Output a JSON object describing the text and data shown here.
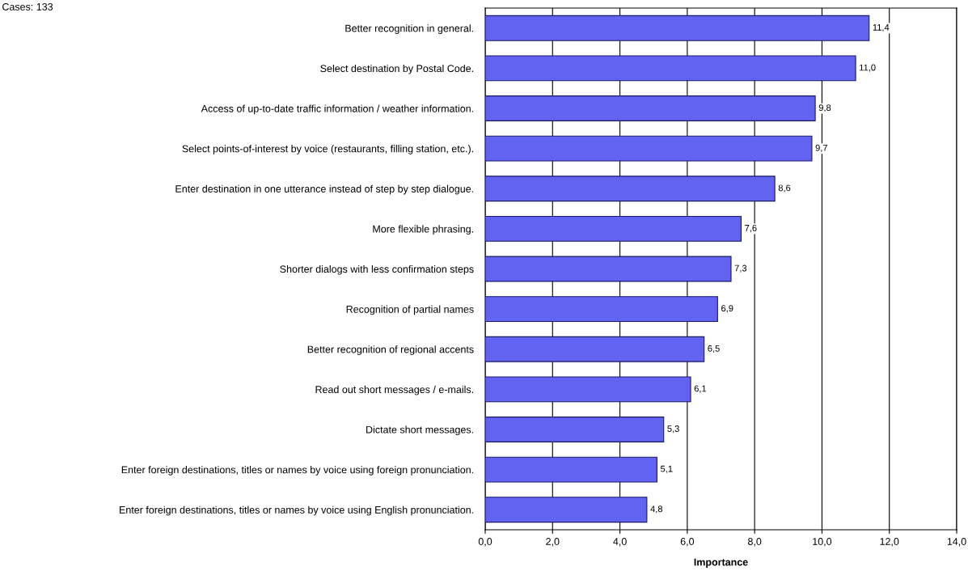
{
  "chart_data": {
    "type": "bar",
    "orientation": "horizontal",
    "xlabel": "Importance",
    "annotations": [
      "Cases: 133"
    ],
    "categories": [
      "Better recognition in general.",
      "Select destination by Postal Code.",
      "Access of up-to-date traffic information / weather information.",
      "Select points-of-interest by voice (restaurants, filling station, etc.).",
      "Enter destination in one utterance instead of step by step dialogue.",
      "More flexible phrasing.",
      "Shorter dialogs with less confirmation steps",
      "Recognition of partial names",
      "Better recognition of regional accents",
      "Read out short messages / e-mails.",
      "Dictate short messages.",
      "Enter foreign destinations, titles or names by voice using foreign pronunciation.",
      "Enter foreign destinations, titles or names by voice using English pronunciation."
    ],
    "values": [
      11.4,
      11.0,
      9.8,
      9.7,
      8.6,
      7.6,
      7.3,
      6.9,
      6.5,
      6.1,
      5.3,
      5.1,
      4.8
    ],
    "value_labels": [
      "11,4",
      "11,0",
      "9,8",
      "9,7",
      "8,6",
      "7,6",
      "7,3",
      "6,9",
      "6,5",
      "6,1",
      "5,3",
      "5,1",
      "4,8"
    ],
    "color": "#6363f2",
    "xlim": [
      0,
      14
    ],
    "xticks": [
      {
        "value": 0,
        "label": "0,0"
      },
      {
        "value": 2,
        "label": "2,0"
      },
      {
        "value": 4,
        "label": "4,0"
      },
      {
        "value": 6,
        "label": "6,0"
      },
      {
        "value": 8,
        "label": "8,0"
      },
      {
        "value": 10,
        "label": "10,0"
      },
      {
        "value": 12,
        "label": "12,0"
      },
      {
        "value": 14,
        "label": "14,0"
      }
    ],
    "grid": "x",
    "legend": false
  }
}
